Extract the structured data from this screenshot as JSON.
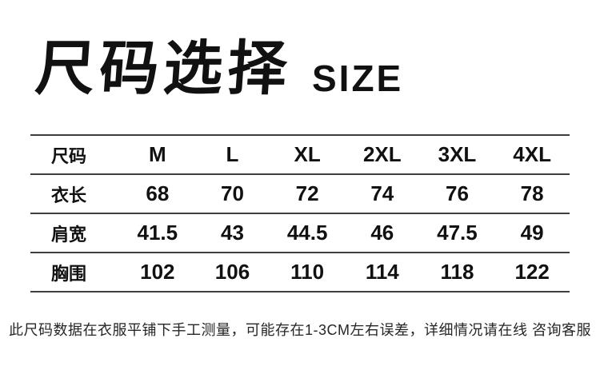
{
  "header": {
    "title_cn": "尺码选择",
    "title_en": "SIZE"
  },
  "table": {
    "label_header": "尺码",
    "columns": [
      "M",
      "L",
      "XL",
      "2XL",
      "3XL",
      "4XL"
    ],
    "rows": [
      {
        "label": "衣长",
        "values": [
          "68",
          "70",
          "72",
          "74",
          "76",
          "78"
        ]
      },
      {
        "label": "肩宽",
        "values": [
          "41.5",
          "43",
          "44.5",
          "46",
          "47.5",
          "49"
        ]
      },
      {
        "label": "胸围",
        "values": [
          "102",
          "106",
          "110",
          "114",
          "118",
          "122"
        ]
      }
    ]
  },
  "footer": {
    "note": "此尺码数据在衣服平铺下手工测量，可能存在1-3CM左右误差，详细情况请在线 咨询客服"
  },
  "colors": {
    "text": "#111111",
    "line": "#3d3d3d",
    "note": "#262626",
    "background": "#ffffff"
  }
}
